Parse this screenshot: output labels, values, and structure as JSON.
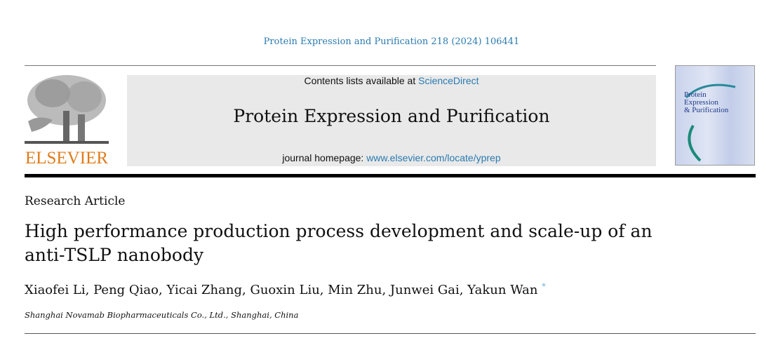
{
  "citation": "Protein Expression and Purification 218 (2024) 106441",
  "header": {
    "contents_prefix": "Contents lists available at ",
    "contents_link": "ScienceDirect",
    "journal_title": "Protein Expression and Purification",
    "homepage_prefix": "journal homepage: ",
    "homepage_link": "www.elsevier.com/locate/yprep",
    "publisher_logo_text": "ELSEVIER",
    "cover_title": [
      "Protein",
      "Expression",
      "& Purification"
    ]
  },
  "article": {
    "type": "Research Article",
    "title": "High performance production process development and scale-up of an anti-TSLP nanobody",
    "authors": [
      "Xiaofei Li",
      "Peng Qiao",
      "Yicai Zhang",
      "Guoxin Liu",
      "Min Zhu",
      "Junwei Gai",
      "Yakun Wan"
    ],
    "corresponding_mark": "*",
    "affiliation": "Shanghai Novamab Biopharmaceuticals Co., Ltd., Shanghai, China"
  },
  "colors": {
    "link": "#2a7ab0",
    "elsevier": "#e07b1a"
  }
}
